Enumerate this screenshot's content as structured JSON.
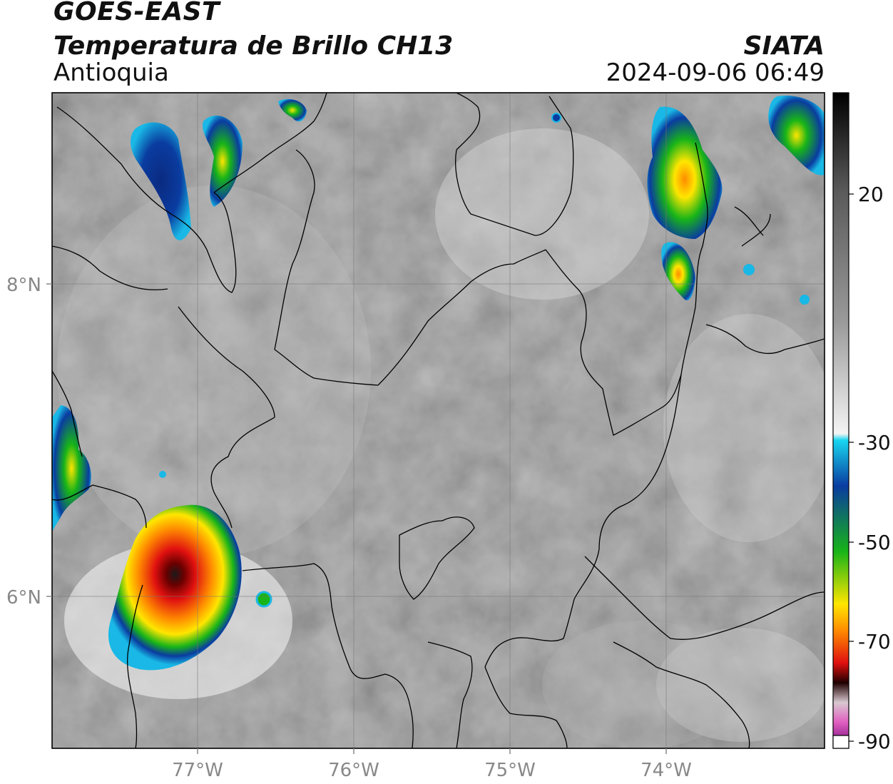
{
  "header": {
    "satellite": "GOES-EAST",
    "product": "Temperatura de Brillo CH13",
    "region": "Antioquia",
    "agency": "SIATA",
    "datetime": "2024-09-06 06:49"
  },
  "axes": {
    "lon_labels": [
      "77°W",
      "76°W",
      "75°W",
      "74°W"
    ],
    "lat_labels": [
      "8°N",
      "6°N"
    ]
  },
  "colorbar": {
    "labels": [
      "20",
      "-30",
      "-50",
      "-70",
      "-90"
    ]
  },
  "colors": {
    "cold_core": "#1a1a1a",
    "red": "#e01010",
    "orange": "#ff8c00",
    "yellow": "#ffe600",
    "green": "#18b418",
    "blue": "#0a3ca0",
    "cyan": "#19b8e6",
    "magenta": "#c040b0"
  }
}
